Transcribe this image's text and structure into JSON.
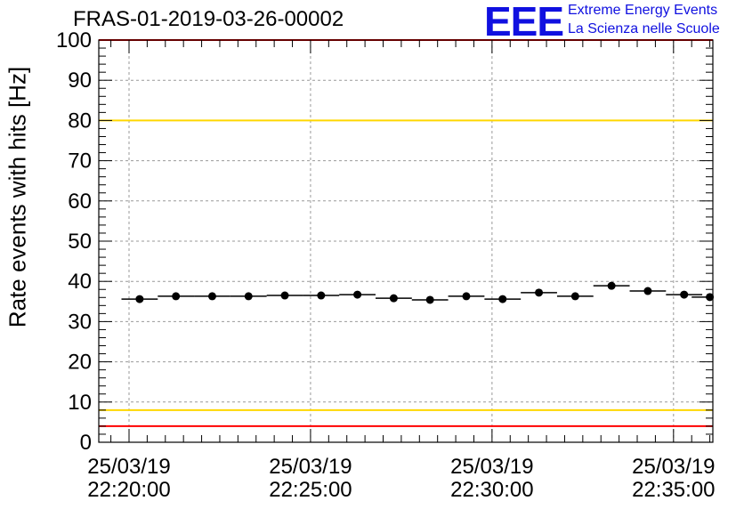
{
  "title": "FRAS-01-2019-03-26-00002",
  "logo": {
    "mark": "EEE",
    "line1": "Extreme Energy Events",
    "line2": "La Scienza nelle Scuole",
    "color": "#1010e0"
  },
  "chart_data": {
    "type": "scatter",
    "title": "FRAS-01-2019-03-26-00002",
    "xlabel": "",
    "ylabel": "Rate events with hits [Hz]",
    "ylim": [
      0,
      100
    ],
    "yticks": [
      0,
      10,
      20,
      30,
      40,
      50,
      60,
      70,
      80,
      90,
      100
    ],
    "xlim": [
      -1.0,
      19.3
    ],
    "x_tick_labels": [
      {
        "x": 0,
        "date": "25/03/19",
        "time": "22:20:00"
      },
      {
        "x": 6,
        "date": "25/03/19",
        "time": "22:25:00"
      },
      {
        "x": 12,
        "date": "25/03/19",
        "time": "22:30:00"
      },
      {
        "x": 18,
        "date": "25/03/19",
        "time": "22:35:00"
      }
    ],
    "grid": true,
    "bin_width": 1.2,
    "points": [
      {
        "x": 0.35,
        "y": 35.6
      },
      {
        "x": 1.55,
        "y": 36.3
      },
      {
        "x": 2.75,
        "y": 36.3
      },
      {
        "x": 3.95,
        "y": 36.3
      },
      {
        "x": 5.15,
        "y": 36.5
      },
      {
        "x": 6.35,
        "y": 36.5
      },
      {
        "x": 7.55,
        "y": 36.7
      },
      {
        "x": 8.75,
        "y": 35.8
      },
      {
        "x": 9.95,
        "y": 35.4
      },
      {
        "x": 11.15,
        "y": 36.3
      },
      {
        "x": 12.35,
        "y": 35.6
      },
      {
        "x": 13.55,
        "y": 37.2
      },
      {
        "x": 14.75,
        "y": 36.3
      },
      {
        "x": 15.95,
        "y": 38.9
      },
      {
        "x": 17.15,
        "y": 37.6
      },
      {
        "x": 18.35,
        "y": 36.7
      },
      {
        "x": 19.2,
        "y": 36.1
      }
    ],
    "reference_lines": [
      {
        "y": 100,
        "color": "#ff0000"
      },
      {
        "y": 80,
        "color": "#ffd700"
      },
      {
        "y": 8,
        "color": "#ffd700"
      },
      {
        "y": 4,
        "color": "#ff0000"
      }
    ]
  }
}
